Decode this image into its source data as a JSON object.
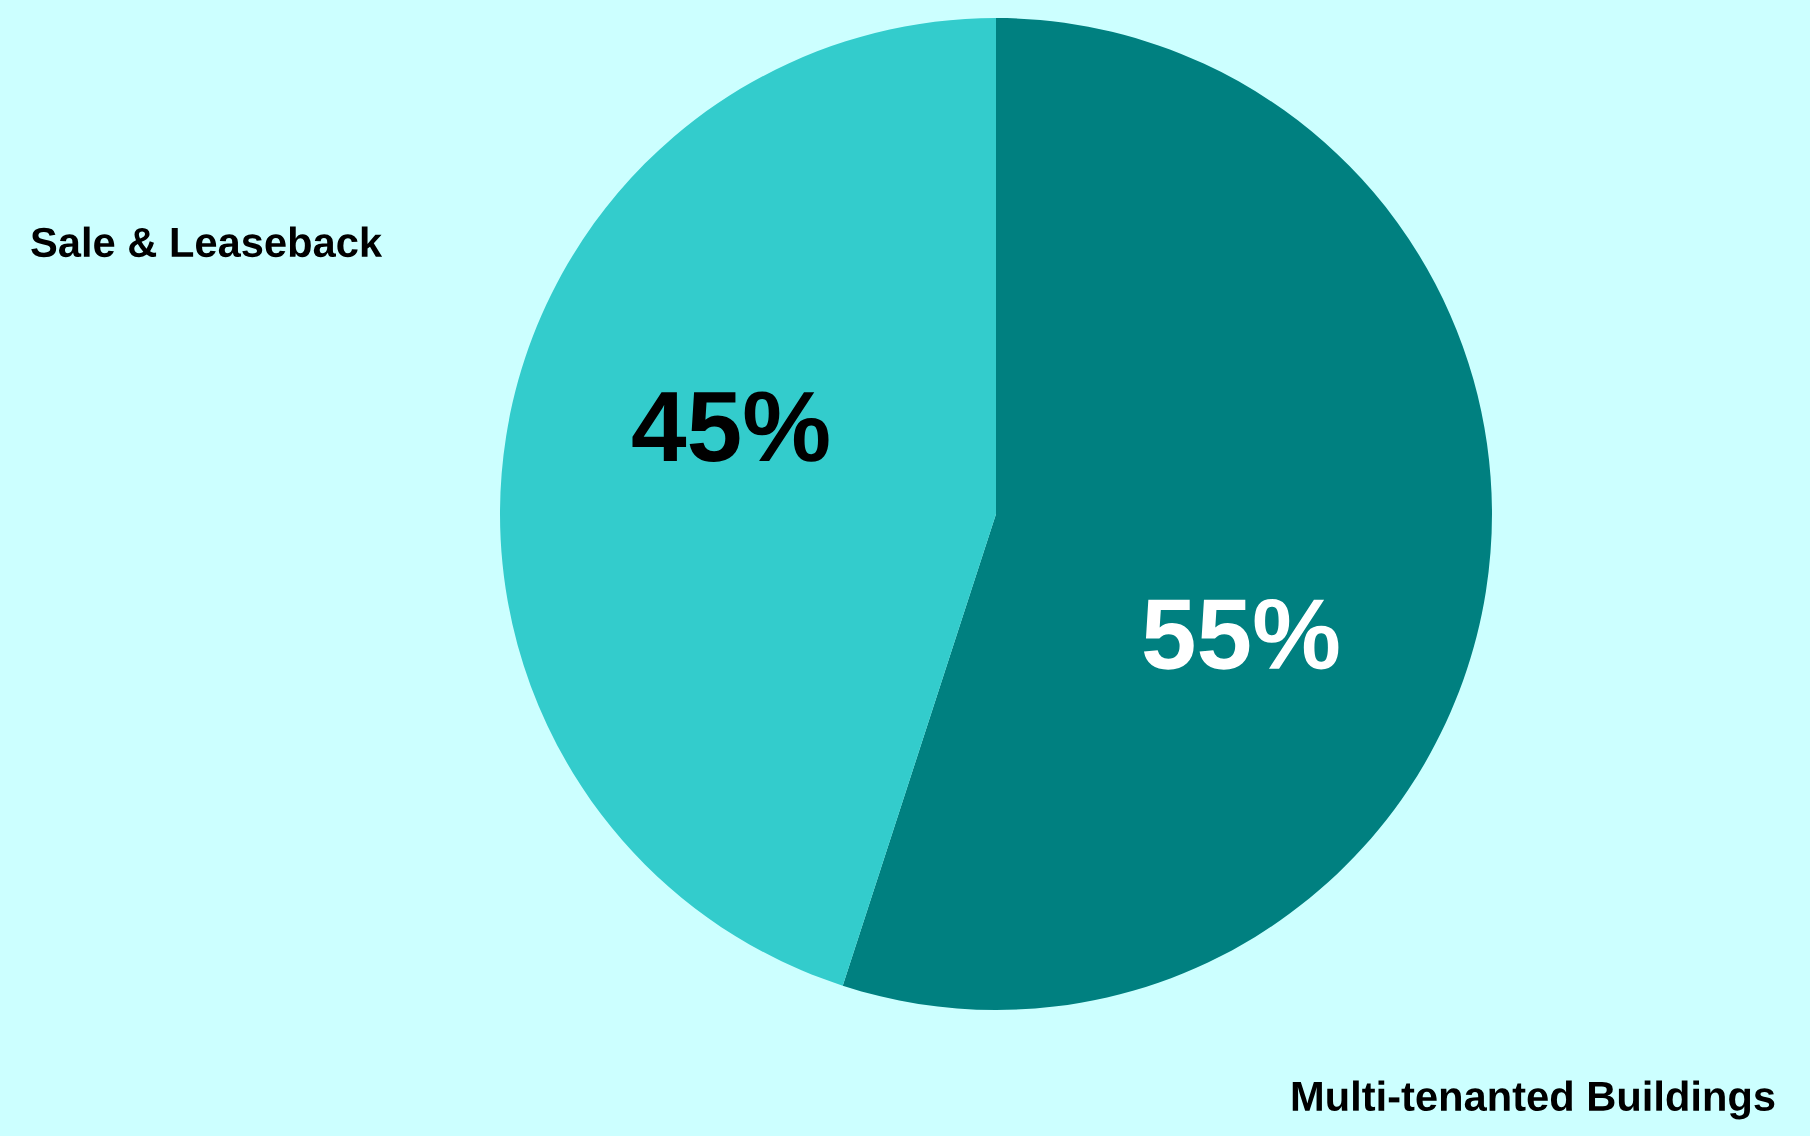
{
  "chart_data": {
    "type": "pie",
    "categories": [
      "Multi-tenanted Buildings",
      "Sale & Leaseback"
    ],
    "values": [
      55,
      45
    ],
    "colors": [
      "#008080",
      "#33cccc"
    ],
    "value_labels": [
      "55%",
      "45%"
    ],
    "legend": false
  }
}
